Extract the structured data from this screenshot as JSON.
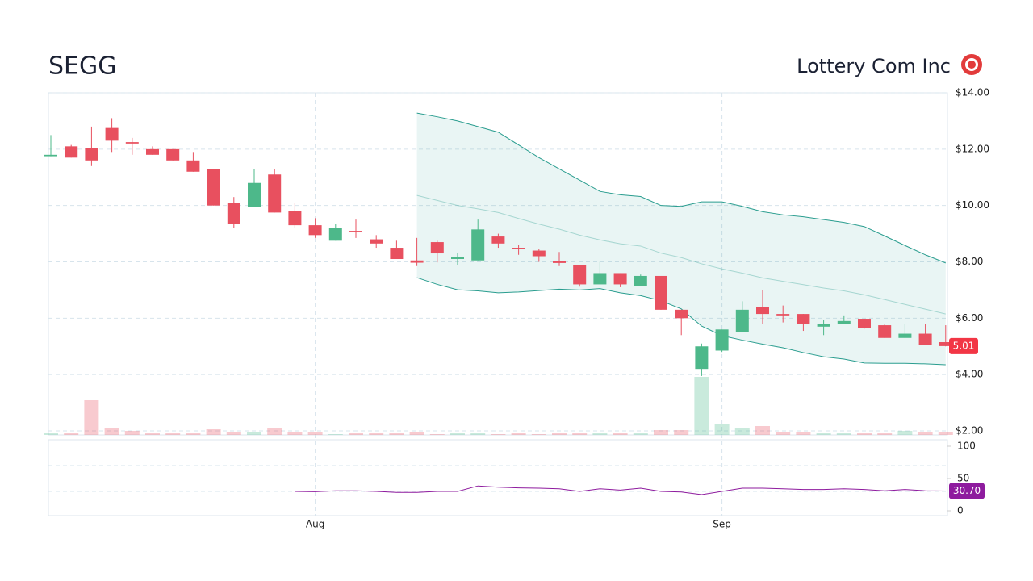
{
  "chart_data": {
    "type": "candlestick",
    "title": "SEGG",
    "subtitle": "Lottery Com Inc",
    "categories": [
      null,
      null,
      null,
      null,
      null,
      null,
      null,
      null,
      null,
      null,
      null,
      null,
      null,
      "Aug",
      null,
      null,
      null,
      null,
      null,
      null,
      null,
      null,
      null,
      null,
      null,
      null,
      null,
      null,
      null,
      null,
      null,
      null,
      null,
      "Sep",
      null,
      null,
      null,
      null,
      null,
      null,
      null,
      null,
      null,
      null,
      null
    ],
    "open": [
      11.75,
      12.1,
      12.05,
      12.75,
      12.25,
      12.0,
      12.0,
      11.6,
      11.3,
      10.1,
      9.95,
      11.1,
      9.8,
      9.3,
      8.75,
      9.1,
      8.8,
      8.5,
      8.05,
      8.7,
      8.1,
      8.05,
      8.9,
      8.5,
      8.4,
      8.02,
      7.9,
      7.2,
      7.6,
      7.15,
      7.5,
      6.3,
      4.2,
      4.85,
      5.5,
      6.4,
      6.15,
      6.15,
      5.7,
      5.8,
      5.98,
      5.75,
      5.3,
      5.45,
      5.15
    ],
    "high": [
      12.5,
      12.15,
      12.8,
      13.1,
      12.4,
      12.1,
      12.0,
      11.9,
      11.3,
      10.3,
      11.3,
      11.3,
      10.1,
      9.55,
      9.35,
      9.5,
      8.95,
      8.75,
      8.85,
      8.75,
      8.3,
      9.5,
      9.0,
      8.6,
      8.45,
      8.35,
      7.9,
      8.0,
      7.6,
      7.55,
      7.5,
      6.3,
      5.1,
      5.6,
      6.6,
      7.0,
      6.45,
      6.15,
      5.95,
      6.1,
      5.98,
      5.8,
      5.8,
      5.8,
      5.75
    ],
    "low": [
      11.75,
      11.7,
      11.4,
      11.9,
      11.8,
      11.8,
      11.6,
      11.2,
      10.0,
      9.2,
      9.95,
      9.75,
      9.2,
      8.85,
      8.75,
      8.85,
      8.5,
      8.1,
      7.85,
      7.98,
      7.9,
      8.05,
      8.5,
      8.25,
      8.0,
      7.85,
      7.12,
      7.2,
      7.1,
      7.15,
      6.3,
      5.4,
      3.95,
      4.8,
      5.5,
      5.8,
      5.85,
      5.55,
      5.4,
      5.8,
      5.63,
      5.3,
      5.3,
      5.05,
      5.0
    ],
    "close": [
      11.8,
      11.7,
      11.6,
      12.3,
      12.2,
      11.8,
      11.6,
      11.2,
      10.0,
      9.35,
      10.8,
      9.75,
      9.3,
      8.95,
      9.2,
      9.08,
      8.65,
      8.1,
      7.97,
      8.3,
      8.18,
      9.15,
      8.65,
      8.45,
      8.2,
      7.96,
      7.2,
      7.6,
      7.2,
      7.5,
      6.3,
      6.0,
      5.0,
      5.6,
      6.3,
      6.15,
      6.1,
      5.8,
      5.8,
      5.9,
      5.65,
      5.3,
      5.45,
      5.05,
      5.01
    ],
    "up_color": "#4db88a",
    "down_color": "#e8505f",
    "ylim": [
      2,
      14
    ],
    "yticks": [
      {
        "value": 2,
        "label": "$2.00"
      },
      {
        "value": 4,
        "label": "$4.00"
      },
      {
        "value": 6,
        "label": "$6.00"
      },
      {
        "value": 8,
        "label": "$8.00"
      },
      {
        "value": 10,
        "label": "$10.00"
      },
      {
        "value": 12,
        "label": "$12.00"
      },
      {
        "value": 14,
        "label": "$14.00"
      }
    ],
    "grid": true,
    "bollinger": {
      "color": "#2a9d8f",
      "upper": [
        null,
        null,
        null,
        null,
        null,
        null,
        null,
        null,
        null,
        null,
        null,
        null,
        null,
        null,
        null,
        null,
        null,
        null,
        13.28,
        13.15,
        13.0,
        12.8,
        12.6,
        12.15,
        11.7,
        11.3,
        10.9,
        10.5,
        10.38,
        10.32,
        10.0,
        9.97,
        10.13,
        10.13,
        9.97,
        9.78,
        9.67,
        9.6,
        9.5,
        9.4,
        9.25,
        8.92,
        8.58,
        8.25,
        7.96
      ],
      "middle": [
        null,
        null,
        null,
        null,
        null,
        null,
        null,
        null,
        null,
        null,
        null,
        null,
        null,
        null,
        null,
        null,
        null,
        null,
        10.36,
        10.18,
        10.0,
        9.88,
        9.75,
        9.54,
        9.34,
        9.16,
        8.95,
        8.78,
        8.64,
        8.56,
        8.31,
        8.15,
        7.93,
        7.75,
        7.6,
        7.43,
        7.31,
        7.19,
        7.07,
        6.97,
        6.83,
        6.66,
        6.49,
        6.32,
        6.15
      ],
      "lower": [
        null,
        null,
        null,
        null,
        null,
        null,
        null,
        null,
        null,
        null,
        null,
        null,
        null,
        null,
        null,
        null,
        null,
        null,
        7.44,
        7.2,
        7.01,
        6.97,
        6.9,
        6.93,
        6.98,
        7.03,
        7.0,
        7.05,
        6.9,
        6.8,
        6.62,
        6.33,
        5.72,
        5.38,
        5.22,
        5.08,
        4.95,
        4.78,
        4.63,
        4.55,
        4.41,
        4.4,
        4.4,
        4.38,
        4.35
      ]
    },
    "volume": {
      "ylim": [
        0,
        100
      ],
      "values": [
        3,
        3,
        43,
        8,
        5,
        2,
        2,
        3,
        7,
        4,
        4,
        9,
        4,
        4,
        1,
        2,
        2,
        3,
        4,
        1,
        2,
        3,
        1,
        2,
        1,
        2,
        2,
        2,
        2,
        2,
        6,
        6,
        72,
        13,
        9,
        11,
        4,
        4,
        2,
        2,
        3,
        2,
        5,
        4,
        4
      ]
    },
    "rsi": {
      "color": "#8e1b9e",
      "ylim": [
        0,
        100
      ],
      "yticks": [
        0,
        50,
        100
      ],
      "levels": [
        30,
        70
      ],
      "values": [
        null,
        null,
        null,
        null,
        null,
        null,
        null,
        null,
        null,
        null,
        null,
        null,
        30,
        29.5,
        31,
        31,
        30,
        28.5,
        28.5,
        30,
        30,
        38.5,
        36.5,
        35.5,
        35,
        34,
        30,
        34,
        32,
        35,
        30,
        29,
        25,
        30,
        35,
        35,
        34,
        33,
        33,
        34,
        33,
        31,
        33,
        31,
        30.7
      ],
      "value_labels": [
        null,
        null,
        null,
        null,
        null,
        null,
        null,
        null,
        null,
        null,
        null,
        null,
        null,
        null,
        null,
        null,
        null,
        null,
        null,
        null,
        null,
        null,
        null,
        null,
        null,
        null,
        null,
        null,
        null,
        null,
        null,
        null,
        null,
        null,
        null,
        null,
        null,
        null,
        null,
        null,
        null,
        null,
        null,
        null,
        "30.70"
      ]
    }
  }
}
